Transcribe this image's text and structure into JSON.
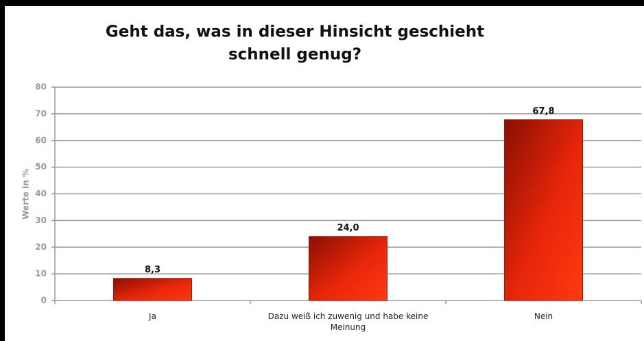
{
  "chart_data": {
    "type": "bar",
    "title": [
      "Geht das, was in dieser Hinsicht geschieht",
      "schnell genug?"
    ],
    "y_label": "Werte in %",
    "categories": [
      "Ja",
      "Dazu weiß ich zuwenig und habe keine Meinung",
      "Nein"
    ],
    "values": [
      8.3,
      24.0,
      67.8
    ],
    "value_labels": [
      "8,3",
      "24,0",
      "67,8"
    ],
    "color": "#e8260a",
    "ylim": [
      0,
      80
    ],
    "yticks": [
      0,
      10,
      20,
      30,
      40,
      50,
      60,
      70,
      80
    ],
    "grid": true
  }
}
